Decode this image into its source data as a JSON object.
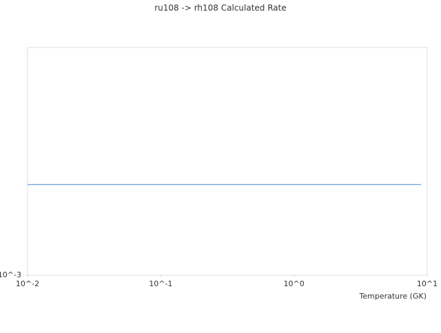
{
  "chart_data": {
    "type": "line",
    "title": "ru108 -> rh108 Calculated Rate",
    "x_label": "Temperature (GK)",
    "x": [
      0.01,
      0.1,
      1,
      9
    ],
    "series": [
      {
        "color": "#4a86c8",
        "values": [
          0.0025,
          0.0025,
          0.0025,
          0.0025
        ]
      }
    ],
    "xscale": "log",
    "yscale": "log",
    "xlim": [
      0.01,
      10
    ],
    "ylim": [
      0.001,
      0.01
    ],
    "xticks": [
      {
        "value": 0.01,
        "label": "10^-2"
      },
      {
        "value": 0.1,
        "label": "10^-1"
      },
      {
        "value": 1,
        "label": "10^0"
      },
      {
        "value": 10,
        "label": "10^1"
      }
    ],
    "yticks": [
      {
        "value": 0.001,
        "label": "10^-3"
      }
    ],
    "grid": false
  }
}
